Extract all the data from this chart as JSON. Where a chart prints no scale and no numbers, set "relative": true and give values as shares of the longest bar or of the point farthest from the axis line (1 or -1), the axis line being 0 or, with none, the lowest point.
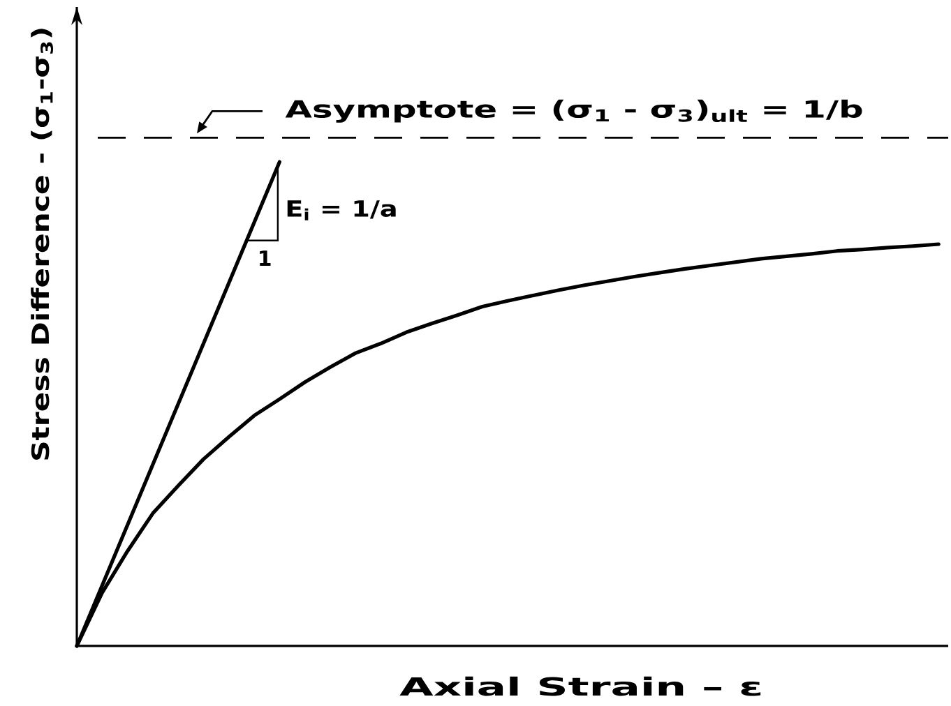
{
  "chart_data": {
    "type": "line",
    "xlabel": "Axial Strain – ε",
    "ylabel": "Stress Difference - (σ$_{1}$-σ$_{3}$)",
    "relative": true,
    "categories": [
      null,
      null,
      null,
      null,
      null,
      null,
      null,
      null,
      null,
      null,
      null,
      null,
      null,
      null,
      null,
      null,
      null,
      null,
      null,
      null,
      null,
      null,
      null,
      null,
      null,
      null,
      null,
      null,
      null,
      null,
      null,
      null,
      null,
      null,
      null
    ],
    "series": [
      {
        "color": "#000000",
        "values": [
          0,
          0.11,
          0.196,
          0.274,
          0.331,
          0.386,
          0.432,
          0.476,
          0.51,
          0.545,
          0.576,
          0.605,
          0.625,
          0.648,
          0.666,
          0.683,
          0.701,
          0.713,
          0.724,
          0.735,
          0.745,
          0.754,
          0.763,
          0.771,
          0.779,
          0.786,
          0.793,
          0.8,
          0.805,
          0.81,
          0.816,
          0.819,
          0.823,
          0.826,
          0.83
        ]
      },
      {
        "color": "#000000",
        "values": [
          0,
          0.125,
          0.25,
          0.375,
          0.5,
          0.625,
          0.75,
          0.875,
          1,
          null,
          null,
          null,
          null,
          null,
          null,
          null,
          null,
          null,
          null,
          null,
          null,
          null,
          null,
          null,
          null,
          null,
          null,
          null,
          null,
          null,
          null,
          null,
          null,
          null,
          null
        ]
      }
    ],
    "ref_lines": [
      {
        "axis": "y",
        "value": 1.05,
        "label": "Asymptote = (σ$_{1}$ - σ$_{3}$)$_{ult}$ = 1/b",
        "color": "#000000",
        "line_style": "dashed"
      }
    ],
    "annotations": [
      "E$_{i}$ = 1/a",
      "1"
    ]
  }
}
